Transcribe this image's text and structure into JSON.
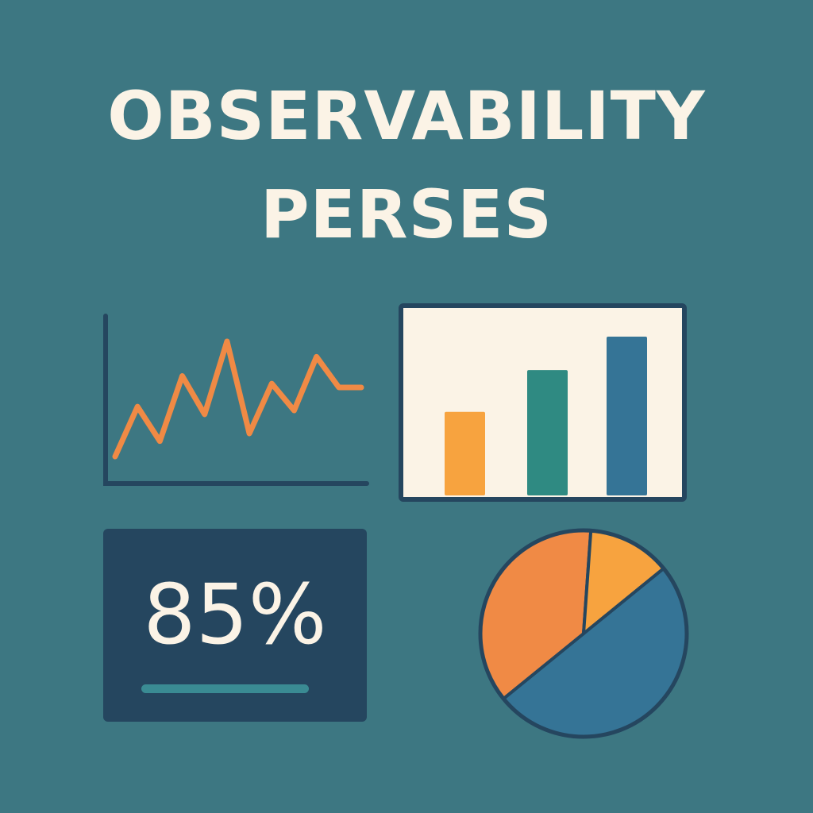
{
  "title": {
    "line1": "OBSERVABILITY",
    "line2": "PERSES"
  },
  "kpi": {
    "value": "85%"
  },
  "colors": {
    "background": "#3d7782",
    "title_text": "#fbf3e6",
    "line": "#f08a45",
    "bar_orange": "#f7a33f",
    "bar_green": "#2f8a82",
    "bar_blue": "#357496",
    "pie_orange": "#f08a45",
    "pie_yellow": "#f7a33f",
    "pie_blue": "#357496",
    "frame": "#25465f",
    "card_bg": "#fbf3e6",
    "kpi_card": "#25465f",
    "kpi_underline": "#3a8b93"
  },
  "chart_data": [
    {
      "type": "line",
      "values": [
        2,
        15,
        6,
        23,
        13,
        32,
        8,
        21,
        14,
        28,
        20,
        20
      ]
    },
    {
      "type": "bar",
      "values": [
        1,
        1.5,
        1.9
      ]
    },
    {
      "type": "pie",
      "values": [
        0.5,
        0.37,
        0.13
      ],
      "colors_semantic": [
        "blue",
        "orange",
        "yellow"
      ]
    }
  ]
}
